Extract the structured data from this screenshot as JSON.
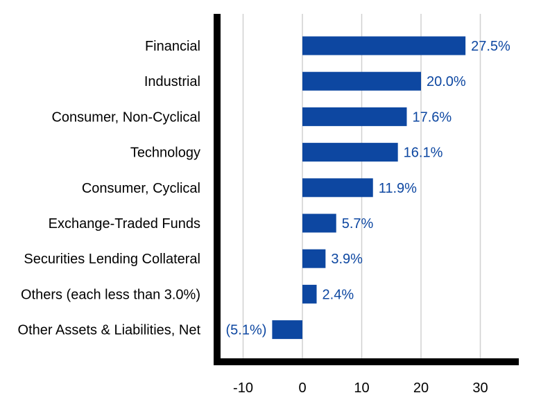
{
  "chart_data": {
    "type": "bar",
    "orientation": "horizontal",
    "categories": [
      "Financial",
      "Industrial",
      "Consumer, Non-Cyclical",
      "Technology",
      "Consumer, Cyclical",
      "Exchange-Traded Funds",
      "Securities Lending Collateral",
      "Others (each less than 3.0%)",
      "Other Assets & Liabilities, Net"
    ],
    "values": [
      27.5,
      20.0,
      17.6,
      16.1,
      11.9,
      5.7,
      3.9,
      2.4,
      -5.1
    ],
    "data_labels": [
      "27.5%",
      "20.0%",
      "17.6%",
      "16.1%",
      "11.9%",
      "5.7%",
      "3.9%",
      "2.4%",
      "(5.1%)"
    ],
    "x_ticks": [
      -10,
      0,
      10,
      20,
      30
    ],
    "x_tick_labels": [
      "-10",
      "0",
      "10",
      "20",
      "30"
    ],
    "xlim": [
      -15,
      36
    ],
    "xlabel": "",
    "ylabel": "",
    "title": "",
    "grid": "vertical",
    "legend": "none",
    "colors": {
      "bar": "#0d47a1",
      "label": "#0d47a1",
      "axis": "#000000",
      "grid": "#d0d0d0",
      "category_text": "#000000"
    }
  }
}
